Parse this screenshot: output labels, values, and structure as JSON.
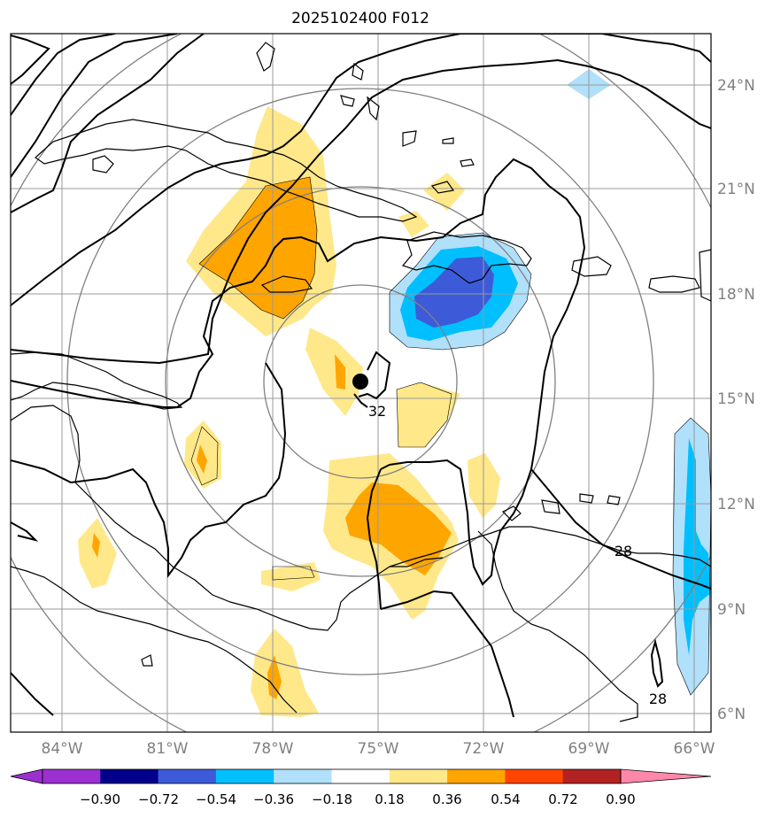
{
  "title": "2025102400 F012",
  "map": {
    "lat_ticks": [
      "24°N",
      "21°N",
      "18°N",
      "15°N",
      "12°N",
      "9°N",
      "6°N"
    ],
    "lon_ticks": [
      "84°W",
      "81°W",
      "78°W",
      "75°W",
      "72°W",
      "69°W",
      "66°W"
    ],
    "contour_labels": [
      "32",
      "28",
      "28"
    ],
    "storm_center": {
      "lat": 15.5,
      "lon": -75.5
    }
  },
  "colorbar": {
    "ticks": [
      "−0.90",
      "−0.72",
      "−0.54",
      "−0.36",
      "−0.18",
      "0.18",
      "0.36",
      "0.54",
      "0.72",
      "0.90"
    ],
    "colors": [
      "#9b30d0",
      "#00008b",
      "#3d5bd9",
      "#00bfff",
      "#b0e0fa",
      "#ffffff",
      "#ffe88a",
      "#ffa500",
      "#ff4500",
      "#b22222",
      "#ff88aa"
    ]
  }
}
